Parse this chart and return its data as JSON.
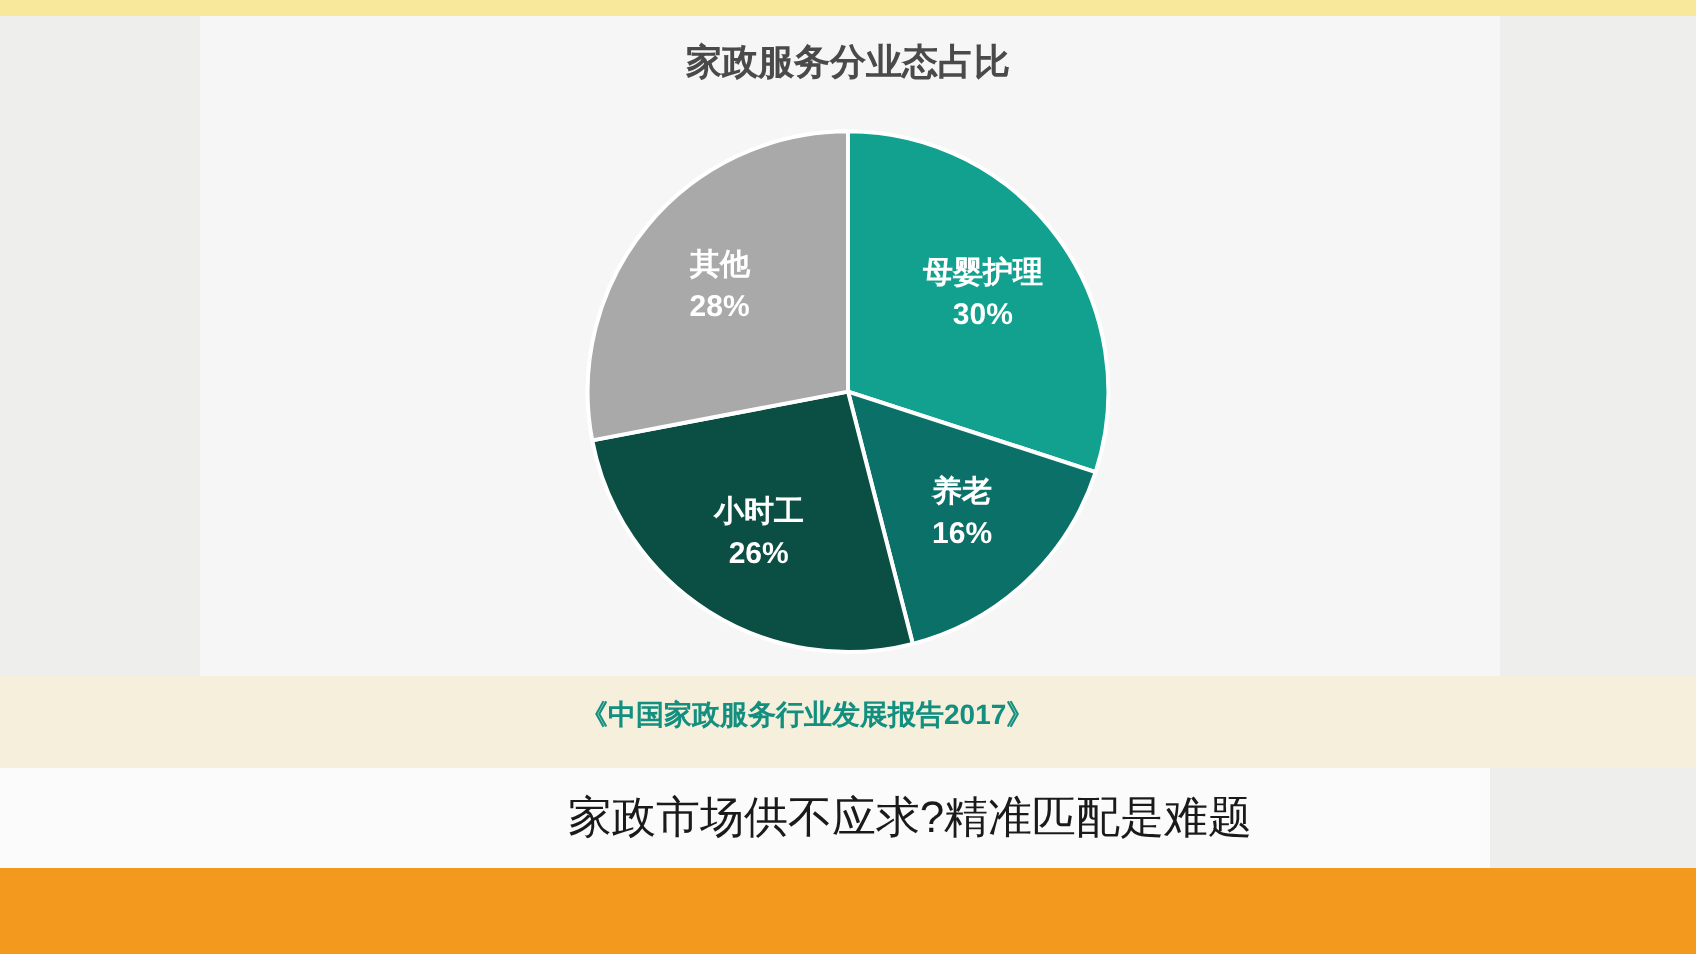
{
  "chart_data": {
    "type": "pie",
    "title": "家政服务分业态占比",
    "categories": [
      "母婴护理",
      "养老",
      "小时工",
      "其他"
    ],
    "values": [
      30,
      16,
      26,
      28
    ],
    "colors": [
      "#12a08f",
      "#0b7168",
      "#0b4e44",
      "#a9a9a9"
    ],
    "value_labels": [
      "30%",
      "16%",
      "26%",
      "28%"
    ],
    "annotations": [
      "《中国家政服务行业发展报告2017》",
      "家政市场供不应求?精准匹配是难题"
    ]
  }
}
